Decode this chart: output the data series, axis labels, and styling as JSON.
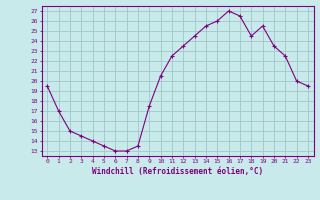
{
  "x": [
    0,
    1,
    2,
    3,
    4,
    5,
    6,
    7,
    8,
    9,
    10,
    11,
    12,
    13,
    14,
    15,
    16,
    17,
    18,
    19,
    20,
    21,
    22,
    23
  ],
  "y": [
    19.5,
    17.0,
    15.0,
    14.5,
    14.0,
    13.5,
    13.0,
    13.0,
    13.5,
    17.5,
    20.5,
    22.5,
    23.5,
    24.5,
    25.5,
    26.0,
    27.0,
    26.5,
    24.5,
    25.5,
    23.5,
    22.5,
    20.0,
    19.5
  ],
  "line_color": "#800080",
  "marker": "+",
  "bg_color": "#c8eaea",
  "grid_color": "#a0c8c8",
  "xlabel": "Windchill (Refroidissement éolien,°C)",
  "ylabel_ticks": [
    13,
    14,
    15,
    16,
    17,
    18,
    19,
    20,
    21,
    22,
    23,
    24,
    25,
    26,
    27
  ],
  "ylim": [
    12.5,
    27.5
  ],
  "xlim": [
    -0.5,
    23.5
  ],
  "font_color": "#800080"
}
